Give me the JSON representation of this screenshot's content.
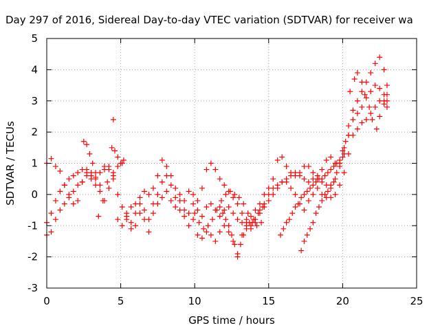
{
  "chart_data": {
    "type": "scatter",
    "title": "Day 297 of 2016, Sidereal Day-to-day VTEC variation (SDTVAR) for receiver wa",
    "xlabel": "GPS time / hours",
    "ylabel": "SDTVAR / TECUs",
    "xlim": [
      0,
      25
    ],
    "ylim": [
      -3,
      5
    ],
    "xticks": [
      0,
      5,
      10,
      15,
      20,
      25
    ],
    "yticks": [
      -3,
      -2,
      -1,
      0,
      1,
      2,
      3,
      4,
      5
    ],
    "grid": true,
    "marker": "plus",
    "color": "#ff0000",
    "series": [
      {
        "x": [
          0.0,
          0.3,
          0.6,
          0.9,
          1.2,
          1.5,
          1.8,
          2.1,
          2.4,
          2.7,
          3.0,
          3.3,
          3.6,
          3.9,
          4.2,
          4.5,
          4.8,
          5.1,
          5.4,
          5.7,
          6.0,
          6.3,
          6.6,
          6.9,
          7.2,
          7.5,
          7.8,
          8.1,
          8.4,
          8.7,
          9.0,
          9.3,
          9.6,
          9.9,
          10.2,
          10.5,
          10.8,
          11.1,
          11.4,
          11.7,
          12.0,
          12.3,
          12.6,
          12.9,
          13.2,
          13.5,
          13.8,
          14.1,
          14.4,
          14.7,
          15.0,
          15.3,
          15.6,
          15.9,
          16.2,
          16.5,
          16.8,
          17.1,
          17.4,
          17.7,
          18.0,
          18.3,
          18.6,
          18.9,
          19.2,
          19.5,
          19.8,
          20.1,
          20.4,
          20.7,
          21.0,
          21.3,
          21.6,
          21.9,
          22.2,
          22.5,
          22.8,
          23.0
        ],
        "y": [
          1.0,
          1.15,
          0.9,
          0.75,
          0.3,
          0.0,
          -0.3,
          -0.2,
          0.4,
          0.8,
          0.7,
          0.55,
          0.3,
          0.9,
          0.8,
          0.5,
          0.9,
          1.0,
          -0.6,
          -0.4,
          -0.3,
          -0.1,
          0.1,
          0.0,
          0.2,
          0.6,
          1.1,
          0.9,
          0.6,
          0.2,
          0.0,
          -0.2,
          0.1,
          0.0,
          -0.2,
          0.2,
          0.8,
          1.0,
          0.8,
          0.5,
          0.3,
          0.1,
          -0.1,
          -0.3,
          -0.6,
          -0.8,
          -0.7,
          -0.5,
          -0.3,
          0.0,
          0.2,
          0.5,
          1.1,
          1.2,
          0.9,
          0.7,
          0.6,
          0.7,
          0.9,
          0.9,
          0.7,
          0.5,
          0.8,
          1.1,
          1.2,
          1.0,
          1.0,
          1.5,
          2.2,
          2.7,
          3.0,
          3.3,
          3.6,
          3.9,
          4.2,
          4.4,
          4.0,
          3.5
        ]
      },
      {
        "x": [
          0.0,
          0.3,
          0.6,
          0.9,
          1.2,
          1.5,
          1.8,
          2.1,
          2.4,
          2.7,
          3.0,
          3.3,
          3.6,
          3.9,
          4.2,
          4.5,
          4.8,
          5.1,
          5.4,
          5.7,
          6.0,
          6.3,
          6.6,
          6.9,
          7.2,
          7.5,
          7.8,
          8.1,
          8.4,
          8.7,
          9.0,
          9.3,
          9.6,
          9.9,
          10.2,
          10.5,
          10.8,
          11.1,
          11.4,
          11.7,
          12.0,
          12.3,
          12.6,
          12.9,
          13.2,
          13.5,
          13.8,
          14.1,
          14.4,
          14.7,
          15.0,
          15.3,
          15.6,
          15.9,
          16.2,
          16.5,
          16.8,
          17.1,
          17.4,
          17.7,
          18.0,
          18.3,
          18.6,
          18.9,
          19.2,
          19.5,
          19.8,
          20.1,
          20.4,
          20.7,
          21.0,
          21.3,
          21.6,
          21.9,
          22.2,
          22.5,
          22.8,
          23.0
        ],
        "y": [
          -0.9,
          -0.6,
          -0.2,
          0.1,
          0.3,
          0.5,
          0.6,
          0.7,
          0.8,
          0.7,
          0.6,
          0.5,
          0.7,
          0.8,
          0.9,
          0.7,
          0.0,
          -0.4,
          -0.8,
          -0.9,
          -0.6,
          -0.3,
          -0.5,
          -0.8,
          -0.3,
          0.0,
          0.4,
          0.6,
          0.3,
          -0.1,
          -0.2,
          -0.5,
          -0.6,
          -0.3,
          -0.5,
          -0.7,
          -0.4,
          -0.3,
          -0.5,
          -0.7,
          -0.5,
          -0.4,
          -0.6,
          -0.8,
          -0.9,
          -1.0,
          -1.1,
          -0.9,
          -0.6,
          -0.4,
          -0.2,
          0.0,
          0.2,
          0.4,
          0.5,
          0.6,
          0.7,
          0.6,
          0.5,
          0.4,
          0.5,
          0.6,
          0.4,
          0.3,
          0.3,
          0.5,
          0.9,
          1.3,
          1.9,
          2.4,
          2.6,
          2.8,
          3.1,
          3.3,
          3.5,
          3.4,
          3.2,
          3.0
        ]
      },
      {
        "x": [
          0.0,
          0.3,
          0.6,
          0.9,
          1.2,
          1.5,
          1.8,
          2.1,
          2.4,
          2.7,
          3.0,
          3.3,
          3.6,
          3.9,
          4.2,
          4.5,
          4.8,
          5.1,
          5.4,
          5.7,
          6.0,
          6.3,
          6.6,
          6.9,
          7.2,
          7.5,
          7.8,
          8.1,
          8.4,
          8.7,
          9.0,
          9.3,
          9.6,
          9.9,
          10.2,
          10.5,
          10.8,
          11.1,
          11.4,
          11.7,
          12.0,
          12.3,
          12.6,
          12.9,
          13.2,
          13.5,
          13.8,
          14.1,
          14.4,
          14.7,
          15.0,
          15.3,
          15.6,
          15.9,
          16.2,
          16.5,
          16.8,
          17.1,
          17.4,
          17.7,
          18.0,
          18.3,
          18.6,
          18.9,
          19.2,
          19.5,
          19.8,
          20.1,
          20.4,
          20.7,
          21.0,
          21.3,
          21.6,
          21.9,
          22.2,
          22.5,
          22.8,
          23.0
        ],
        "y": [
          -1.3,
          -1.2,
          -0.8,
          -0.5,
          -0.3,
          -0.1,
          0.1,
          0.3,
          0.4,
          0.6,
          0.5,
          0.3,
          0.1,
          -0.2,
          0.2,
          0.6,
          -0.8,
          -1.0,
          -0.7,
          -1.1,
          -1.0,
          -0.6,
          -0.8,
          -1.2,
          -0.6,
          -0.3,
          -0.1,
          0.1,
          -0.2,
          -0.4,
          -0.5,
          -0.7,
          -1.0,
          -0.8,
          -1.3,
          -1.4,
          -1.2,
          -1.3,
          -1.5,
          -1.2,
          -1.0,
          -1.2,
          -1.5,
          -1.9,
          -1.3,
          -0.9,
          -1.0,
          -0.8,
          -0.5,
          -0.3,
          0.0,
          0.2,
          0.3,
          0.4,
          0.4,
          0.2,
          0.0,
          -0.3,
          -0.5,
          -0.2,
          0.0,
          0.2,
          0.0,
          -0.1,
          -0.1,
          0.0,
          0.3,
          0.7,
          1.3,
          1.9,
          2.1,
          2.3,
          2.4,
          2.6,
          2.8,
          3.0,
          2.9,
          2.8
        ]
      },
      {
        "x": [
          15.8,
          16.0,
          16.2,
          16.4,
          16.6,
          16.8,
          17.0,
          17.2,
          17.4,
          17.6,
          17.8,
          18.0,
          18.2,
          18.4,
          18.6,
          18.8,
          19.0,
          19.2,
          19.4,
          19.6,
          19.8,
          20.0
        ],
        "y": [
          -1.3,
          -1.1,
          -0.9,
          -0.8,
          -0.6,
          -0.4,
          -0.3,
          -0.1,
          0.0,
          0.1,
          0.2,
          0.3,
          0.4,
          0.5,
          0.5,
          0.6,
          0.7,
          0.8,
          0.9,
          1.0,
          1.1,
          1.2
        ]
      },
      {
        "x": [
          17.2,
          17.4,
          17.6,
          17.8,
          18.0,
          18.2,
          18.4,
          18.6,
          18.8,
          19.0,
          19.2,
          19.4,
          19.6,
          19.8,
          20.0,
          20.2,
          20.4
        ],
        "y": [
          -1.8,
          -1.5,
          -1.3,
          -1.1,
          -0.9,
          -0.6,
          -0.4,
          -0.2,
          0.0,
          0.1,
          0.2,
          0.4,
          0.7,
          1.0,
          1.4,
          1.7,
          1.9
        ]
      },
      {
        "x": [
          20.5,
          20.8,
          21.0,
          21.3,
          21.5,
          21.8,
          22.0,
          22.3,
          22.5,
          22.8,
          23.0
        ],
        "y": [
          3.3,
          3.7,
          3.9,
          3.6,
          3.2,
          2.8,
          2.4,
          2.1,
          2.5,
          3.0,
          3.2
        ]
      },
      {
        "x": [
          3.5,
          3.8,
          4.1,
          4.4,
          4.5,
          4.6,
          4.8,
          5.0,
          5.2
        ],
        "y": [
          -0.7,
          -0.2,
          0.4,
          1.5,
          2.4,
          1.4,
          1.2,
          1.0,
          1.1
        ]
      },
      {
        "x": [
          2.5,
          2.7,
          2.9,
          3.1,
          3.3
        ],
        "y": [
          1.7,
          1.6,
          1.3,
          1.0,
          0.7
        ]
      },
      {
        "x": [
          11.7,
          11.9,
          12.1,
          12.3,
          12.5,
          12.7,
          12.9,
          13.1,
          13.3,
          13.5,
          13.7,
          14.0,
          14.3,
          14.6
        ],
        "y": [
          -0.4,
          -0.6,
          -0.8,
          -1.0,
          -1.3,
          -1.6,
          -2.0,
          -1.6,
          -1.3,
          -1.1,
          -0.9,
          -0.8,
          -0.6,
          -0.4
        ]
      },
      {
        "x": [
          10.0,
          10.3,
          10.6,
          10.9,
          11.2,
          11.5,
          11.8,
          12.1,
          12.4,
          12.7,
          13.0,
          13.3,
          13.6,
          13.9,
          14.2,
          14.5
        ],
        "y": [
          -0.6,
          -0.9,
          -1.1,
          -1.0,
          -0.8,
          -0.5,
          -0.2,
          0.0,
          0.1,
          0.0,
          -0.1,
          -0.3,
          -0.6,
          -0.9,
          -1.0,
          -0.9
        ]
      }
    ]
  }
}
